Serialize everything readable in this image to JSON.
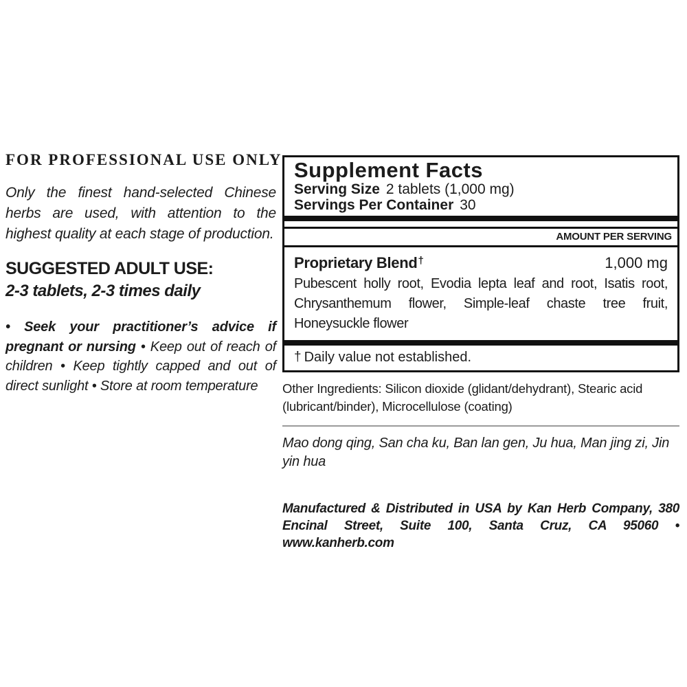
{
  "left_column": {
    "professional_use": "FOR PROFESSIONAL USE ONLY",
    "intro": "Only the finest hand-selected Chinese herbs are used, with attention to the highest quality at each stage of production.",
    "suggested_use_heading": "SUGGESTED ADULT USE:",
    "suggested_use_dose": "2-3 tablets, 2-3 times daily",
    "warning_bold": "• Seek your practitioner’s advice if pregnant or nursing",
    "warning_rest": " • Keep out of reach of children • Keep tightly capped and out of direct sunlight • Store at room temperature"
  },
  "supplement_facts": {
    "title": "Supplement Facts",
    "serving_size_label": "Serving Size",
    "serving_size_value": "2 tablets (1,000 mg)",
    "servings_per_container_label": "Servings Per Container",
    "servings_per_container_value": "30",
    "amount_per_serving": "AMOUNT PER SERVING",
    "blend_name": "Proprietary Blend",
    "blend_dagger": "†",
    "blend_amount": "1,000 mg",
    "blend_ingredients": "Pubescent holly root, Evodia lepta leaf and root, Isatis root, Chrysanthemum flower, Simple-leaf chaste tree fruit, Honeysuckle flower",
    "footnote_dagger": "†",
    "footnote": "Daily value not established."
  },
  "other_ingredients": "Other Ingredients: Silicon dioxide (glidant/dehydrant), Stearic acid (lubricant/binder), Microcellulose (coating)",
  "pinyin_names": "Mao dong qing, San cha ku, Ban lan gen, Ju hua, Man jing zi, Jin yin hua",
  "manufacturer": "Manufactured & Distributed in USA by Kan Herb Company, 380 Encinal Street, Suite 100, Santa Cruz, CA 95060 • www.kanherb.com",
  "colors": {
    "text": "#1c1c1c",
    "rule": "#111111",
    "divider": "#9a9a9a",
    "background": "#ffffff"
  }
}
